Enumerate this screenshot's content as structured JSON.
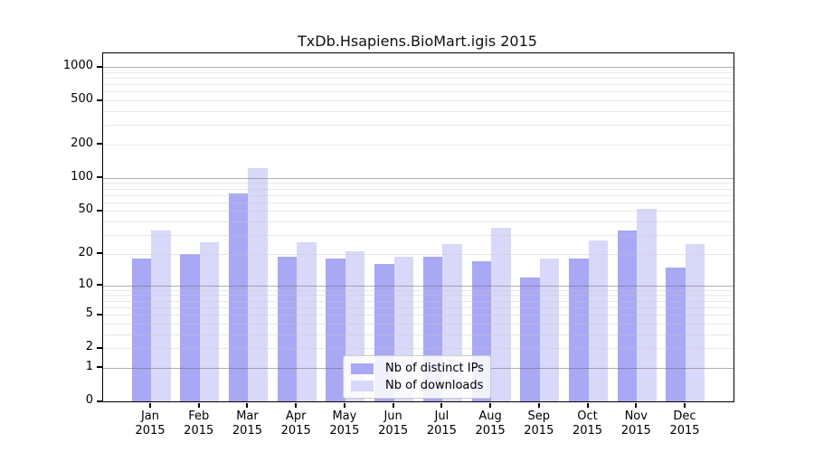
{
  "chart_data": {
    "type": "bar",
    "title": "TxDb.Hsapiens.BioMart.igis 2015",
    "categories": [
      "Jan",
      "Feb",
      "Mar",
      "Apr",
      "May",
      "Jun",
      "Jul",
      "Aug",
      "Sep",
      "Oct",
      "Nov",
      "Dec"
    ],
    "x_year": "2015",
    "series": [
      {
        "name": "Nb of distinct IPs",
        "color": "#a8a8f5",
        "values": [
          18,
          20,
          73,
          19,
          18,
          16,
          19,
          17,
          12,
          18,
          33,
          15
        ]
      },
      {
        "name": "Nb of downloads",
        "color": "#d8d8f9",
        "values": [
          33,
          26,
          123,
          26,
          21,
          19,
          25,
          35,
          18,
          27,
          52,
          25
        ]
      }
    ],
    "y_ticks": [
      0,
      1,
      2,
      5,
      10,
      20,
      50,
      100,
      200,
      500,
      1000
    ],
    "y_minor_ticks": [
      2,
      3,
      4,
      5,
      6,
      7,
      8,
      9,
      20,
      30,
      40,
      50,
      60,
      70,
      80,
      90,
      200,
      300,
      400,
      500,
      600,
      700,
      800,
      900
    ],
    "y_major_gridlines": [
      1,
      10,
      100,
      1000
    ],
    "y_scale": "log1p",
    "ylim": [
      0,
      1200
    ],
    "grid": "on",
    "legend_position": "bottom-center",
    "colors": {
      "distinct_ips": "#a8a8f5",
      "downloads": "#d8d8f9",
      "major_grid": "#b4b4b4",
      "minor_grid": "#ececec",
      "axis": "#000000",
      "legend_border": "#cccccc"
    }
  }
}
